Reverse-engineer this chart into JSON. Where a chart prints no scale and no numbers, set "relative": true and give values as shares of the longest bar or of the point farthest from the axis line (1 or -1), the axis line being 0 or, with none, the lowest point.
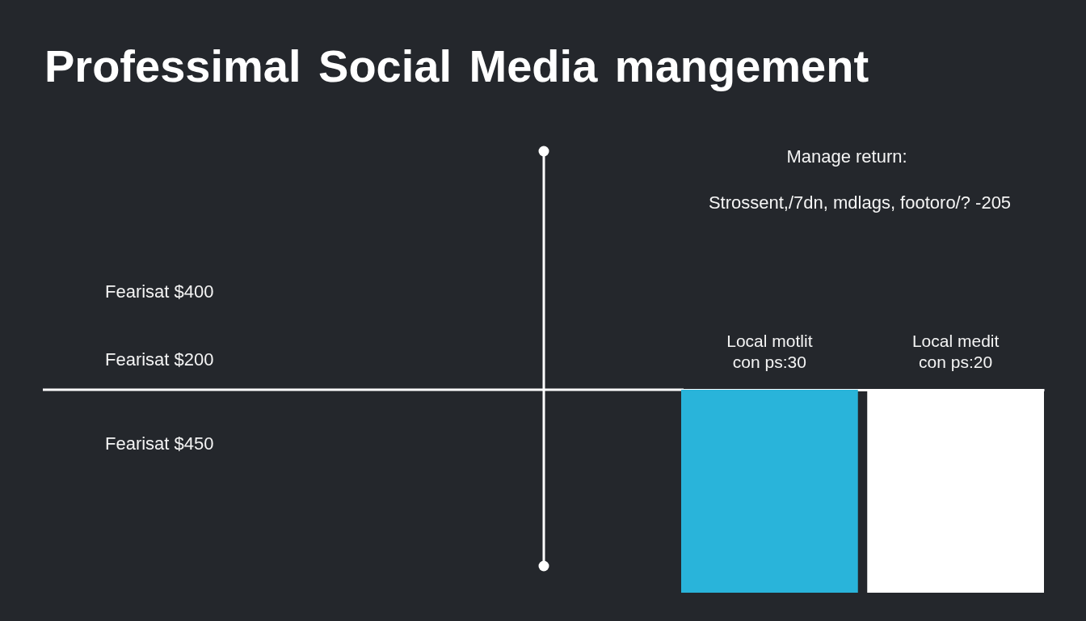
{
  "chart_data": {
    "type": "bar",
    "title": "Professimal Social Media mangement",
    "categories": [
      "Local motlit con ps:30",
      "Local medit con ps:20"
    ],
    "values": [
      -1,
      -1
    ],
    "colors": [
      "#29b4da",
      "#ffffff"
    ],
    "relative": true,
    "annotations": [
      "Manage return:",
      "Strossent,/7dn, mdlags, footoro/? -205",
      "Fearisat $400",
      "Fearisat $200",
      "Fearisat $450"
    ]
  }
}
